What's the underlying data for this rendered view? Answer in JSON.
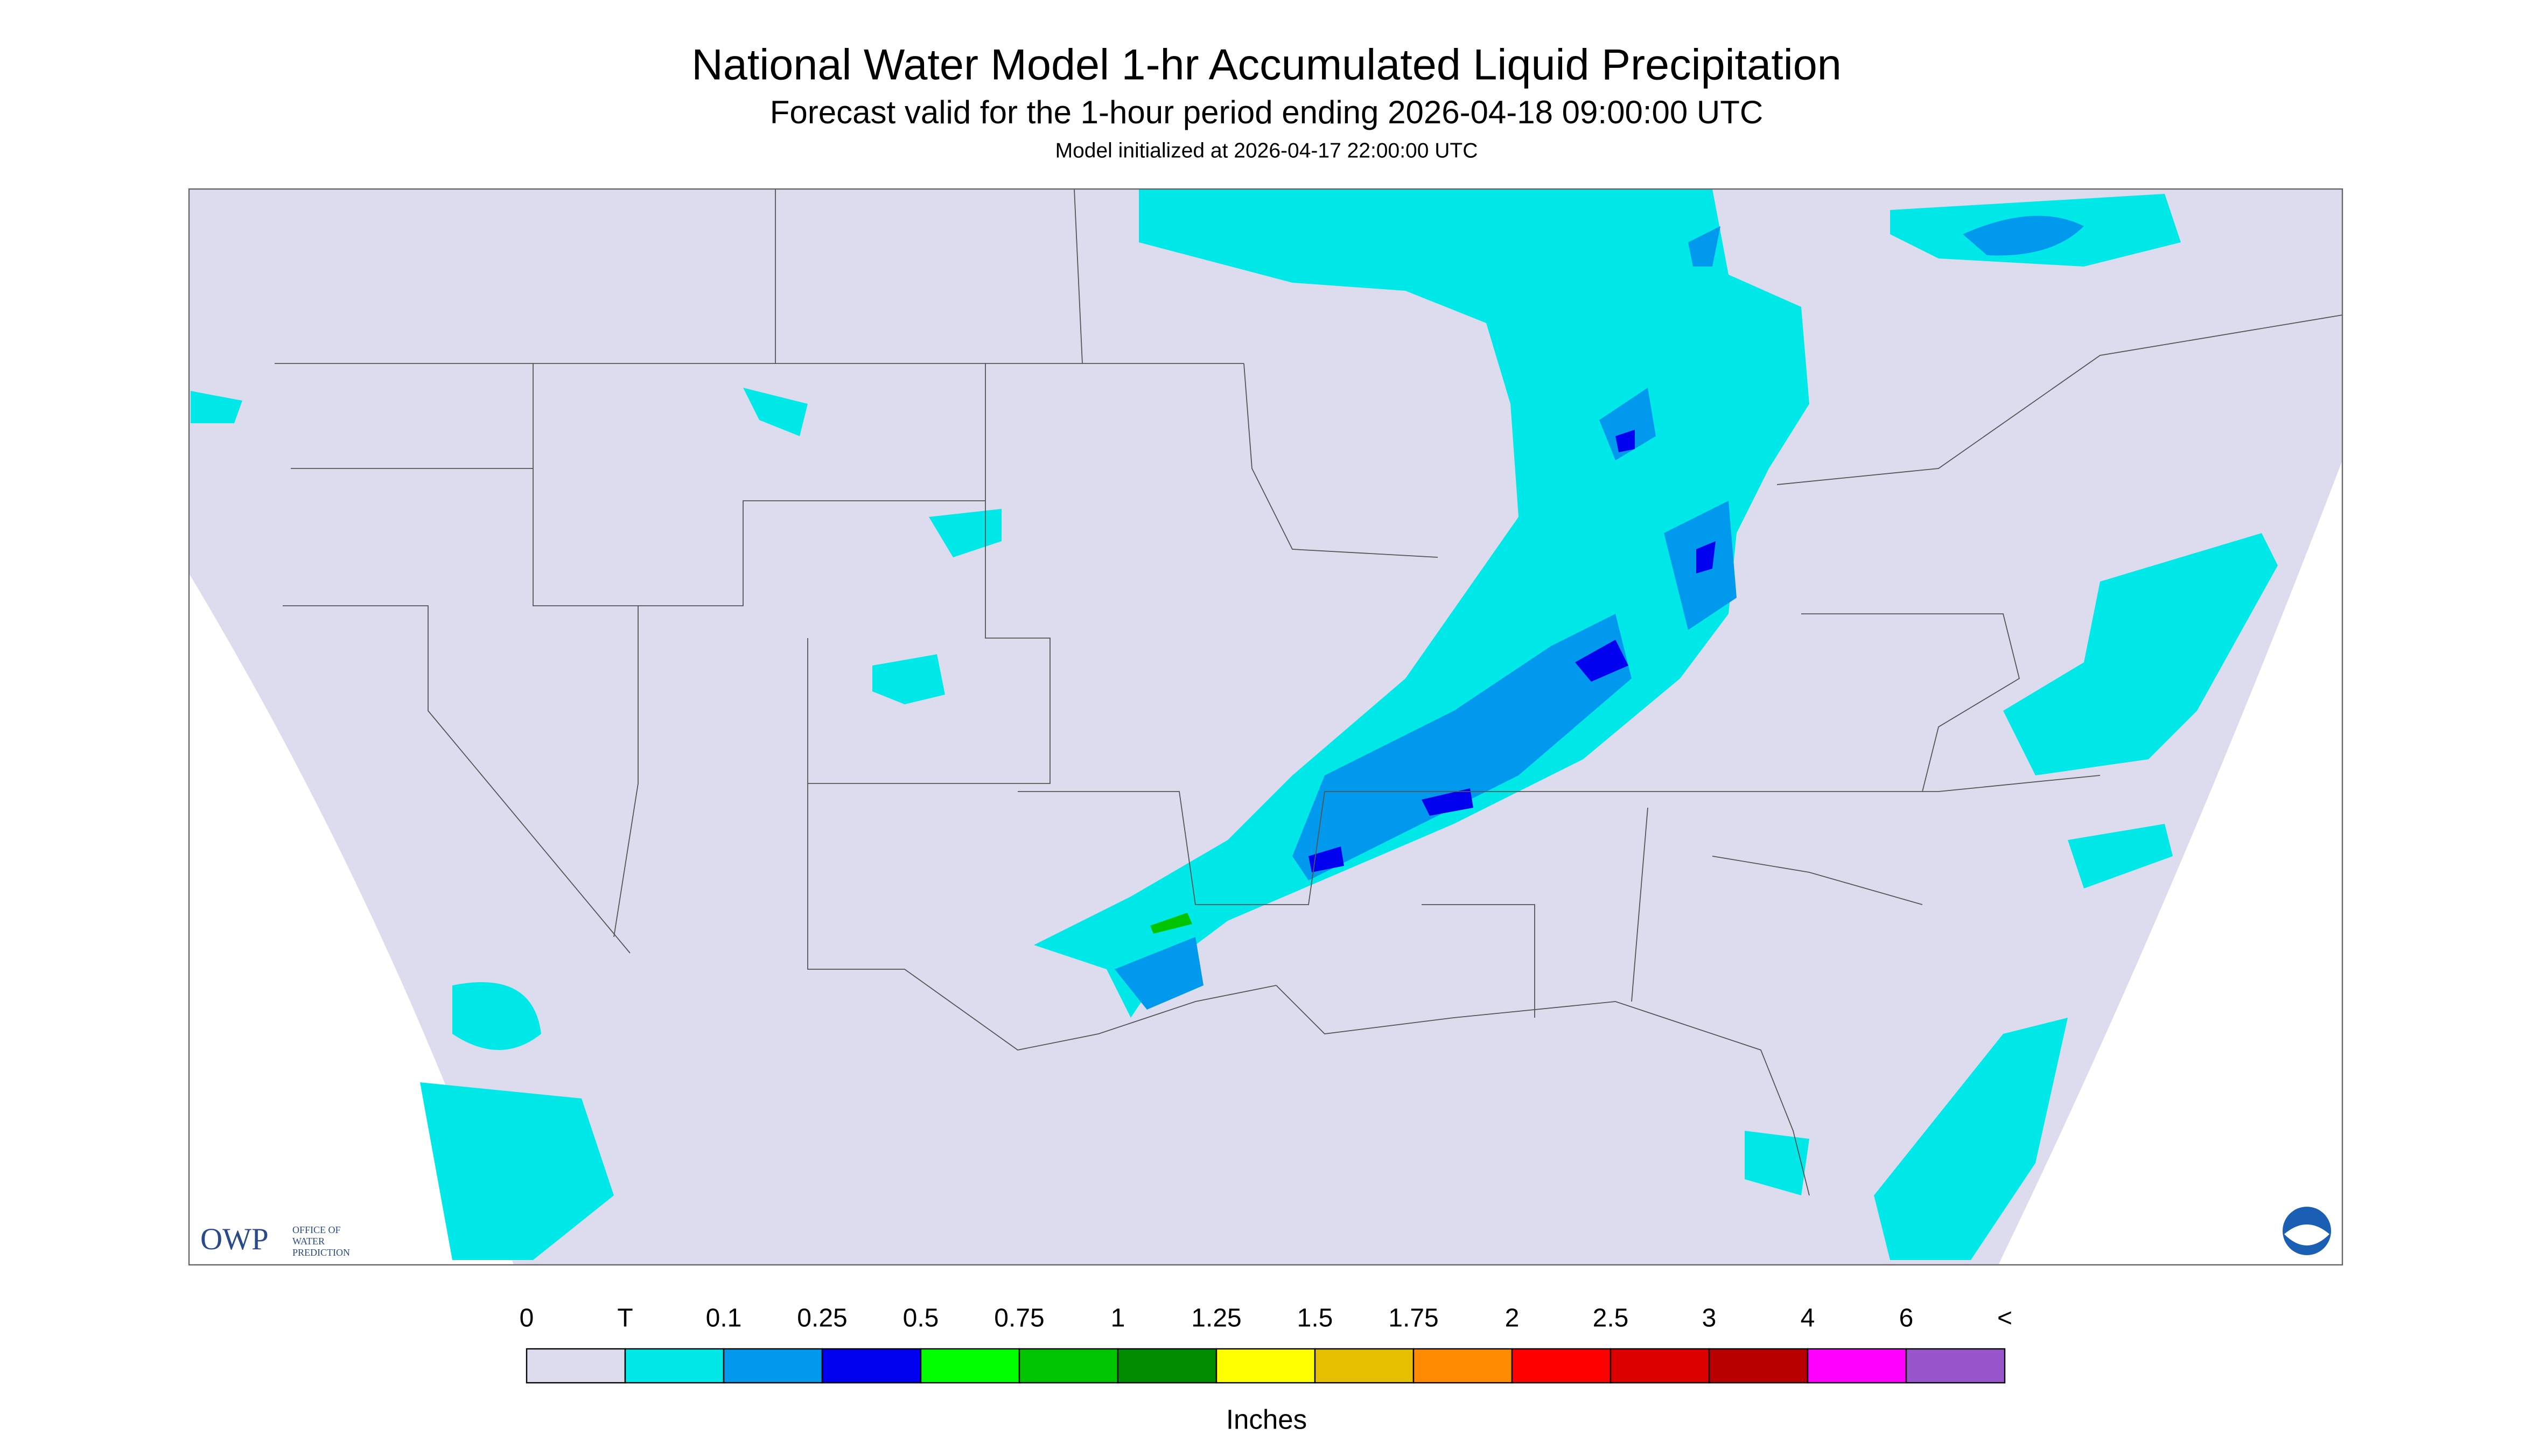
{
  "header": {
    "title": "National Water Model 1-hr Accumulated Liquid Precipitation",
    "subtitle": "Forecast valid for the 1-hour period ending 2026-04-18 09:00:00 UTC",
    "note": "Model initialized at 2026-04-17 22:00:00 UTC"
  },
  "logo": {
    "name": "OWP",
    "text": [
      "OFFICE OF",
      "WATER",
      "PREDICTION"
    ]
  },
  "legend": {
    "labels": [
      "0",
      "T",
      "0.1",
      "0.25",
      "0.5",
      "0.75",
      "1",
      "1.25",
      "1.5",
      "1.75",
      "2",
      "2.5",
      "3",
      "4",
      "6",
      "<"
    ],
    "colors": [
      "#dcdcee",
      "#00e8e8",
      "#0099ee",
      "#0000ee",
      "#00ff00",
      "#00c400",
      "#008c00",
      "#ffff00",
      "#e6c000",
      "#ff8c00",
      "#ff0000",
      "#dc0000",
      "#b80000",
      "#ff00ff",
      "#9955cc"
    ],
    "unit": "Inches"
  }
}
